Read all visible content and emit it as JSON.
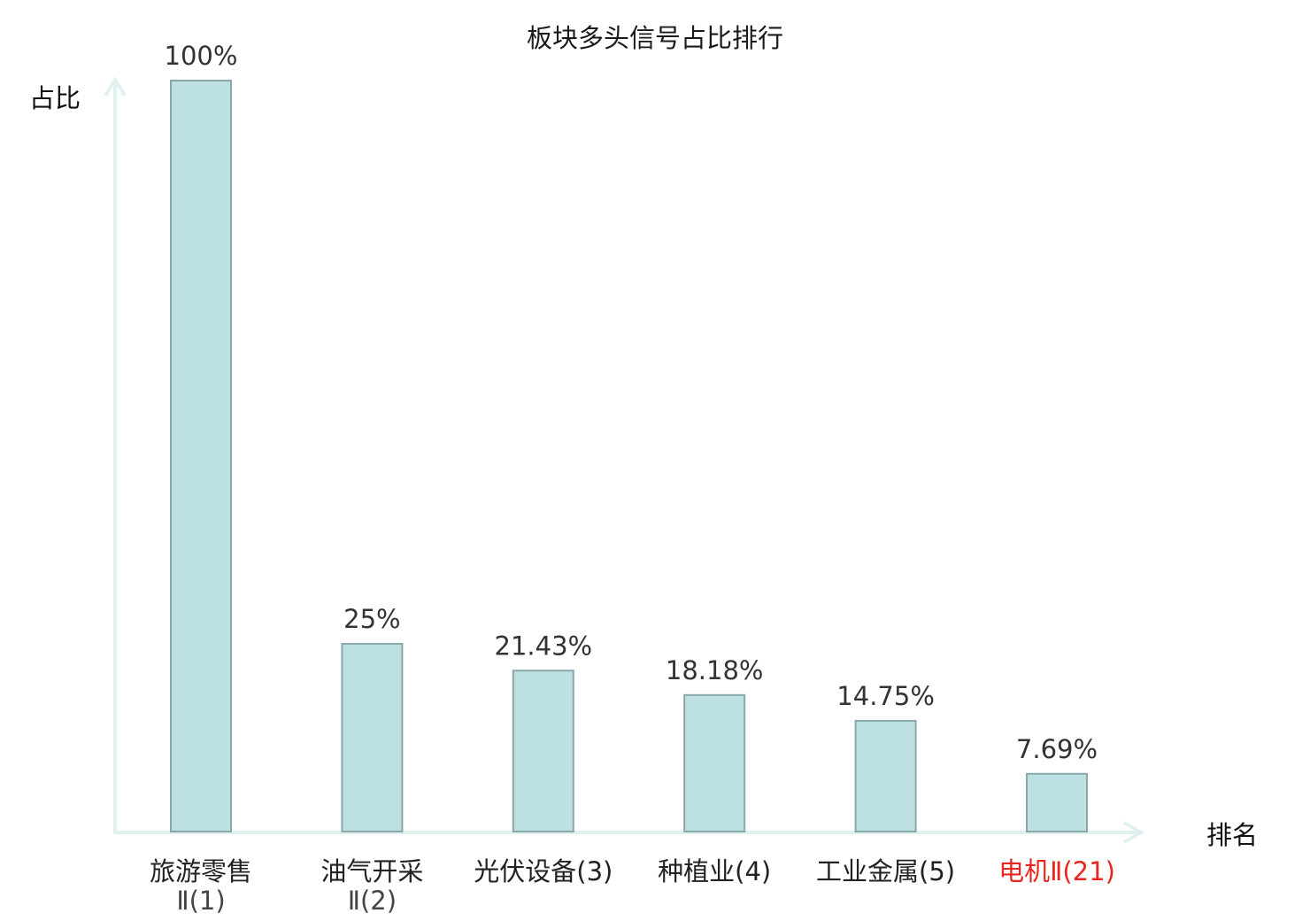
{
  "chart_data": {
    "type": "bar",
    "title": "板块多头信号占比排行",
    "ylabel": "占比",
    "xlabel": "排名",
    "ylim": [
      0,
      100
    ],
    "categories": [
      "旅游零售Ⅱ(1)",
      "油气开采Ⅱ(2)",
      "光伏设备(3)",
      "种植业(4)",
      "工业金属(5)",
      "电机Ⅱ(21)"
    ],
    "category_lines": [
      [
        "旅游零售",
        "Ⅱ(1)"
      ],
      [
        "油气开采",
        "Ⅱ(2)"
      ],
      [
        "光伏设备(3)"
      ],
      [
        "种植业(4)"
      ],
      [
        "工业金属(5)"
      ],
      [
        "电机Ⅱ(21)"
      ]
    ],
    "values": [
      100,
      25,
      21.43,
      18.18,
      14.75,
      7.69
    ],
    "value_labels": [
      "100%",
      "25%",
      "21.43%",
      "18.18%",
      "14.75%",
      "7.69%"
    ],
    "highlight_index": 5,
    "colors": {
      "bar_fill": "#bde0e3",
      "bar_stroke": "#8aa7a9",
      "axis": "#dff2ef",
      "highlight_text": "#e8261f"
    },
    "grid": false
  }
}
